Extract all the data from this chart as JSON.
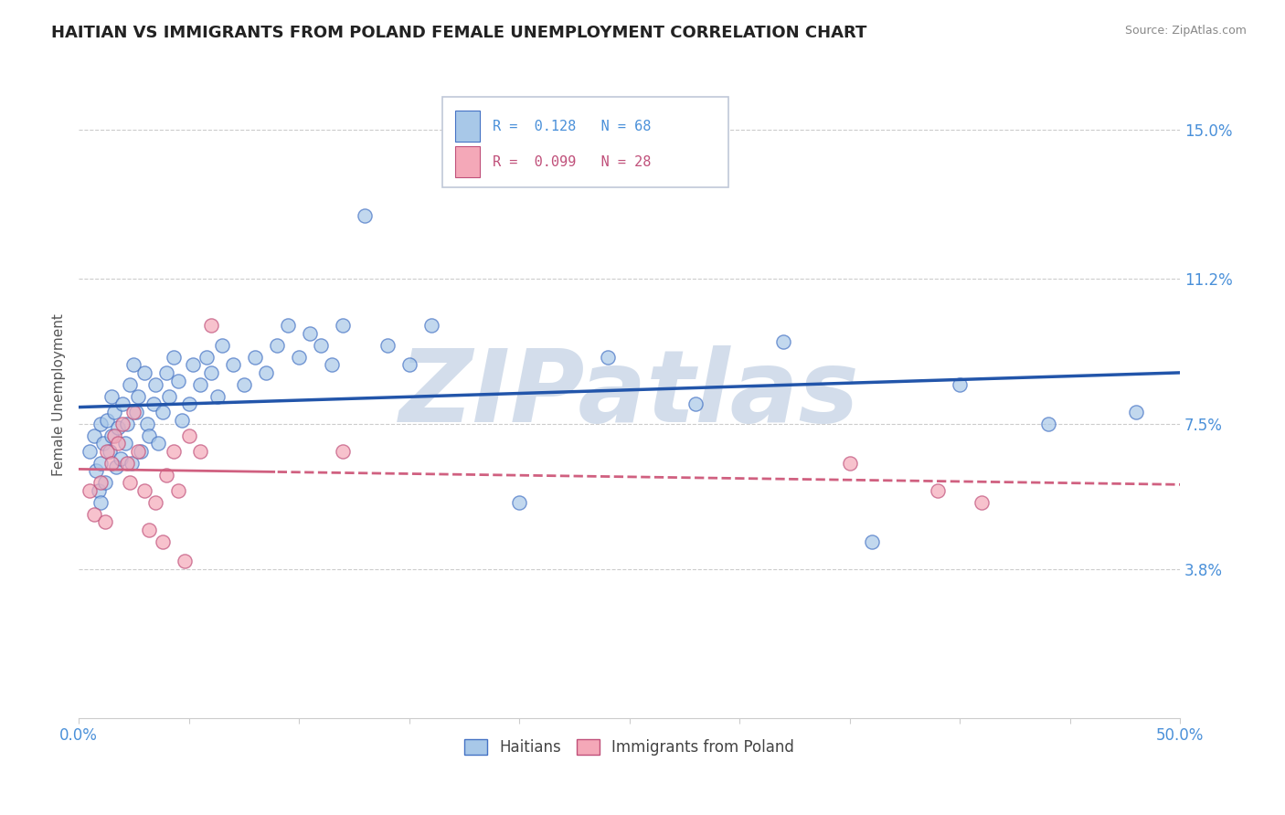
{
  "title": "HAITIAN VS IMMIGRANTS FROM POLAND FEMALE UNEMPLOYMENT CORRELATION CHART",
  "source": "Source: ZipAtlas.com",
  "ylabel": "Female Unemployment",
  "xlim": [
    0.0,
    0.5
  ],
  "ylim": [
    0.0,
    0.165
  ],
  "yticks": [
    0.038,
    0.075,
    0.112,
    0.15
  ],
  "ytick_labels": [
    "3.8%",
    "7.5%",
    "11.2%",
    "15.0%"
  ],
  "xticks": [
    0.0,
    0.05,
    0.1,
    0.15,
    0.2,
    0.25,
    0.3,
    0.35,
    0.4,
    0.45,
    0.5
  ],
  "xtick_labels": [
    "0.0%",
    "",
    "",
    "",
    "",
    "",
    "",
    "",
    "",
    "",
    "50.0%"
  ],
  "legend_line1": "R =  0.128   N = 68",
  "legend_line2": "R =  0.099   N = 28",
  "series1_name": "Haitians",
  "series2_name": "Immigrants from Poland",
  "color1": "#a8c8e8",
  "color2": "#f4a8b8",
  "edge1": "#4472c4",
  "edge2": "#c0507a",
  "trend1_color": "#2255aa",
  "trend2_color": "#d06080",
  "background_color": "#ffffff",
  "grid_color": "#cccccc",
  "watermark": "ZIPatlas",
  "watermark_color": "#ccd8e8",
  "title_color": "#222222",
  "axis_label_color": "#555555",
  "tick_label_color": "#4a90d9",
  "title_fontsize": 13,
  "axis_label_fontsize": 11,
  "haitians_x": [
    0.005,
    0.007,
    0.008,
    0.009,
    0.01,
    0.01,
    0.01,
    0.011,
    0.012,
    0.013,
    0.014,
    0.015,
    0.015,
    0.016,
    0.017,
    0.018,
    0.019,
    0.02,
    0.021,
    0.022,
    0.023,
    0.024,
    0.025,
    0.026,
    0.027,
    0.028,
    0.03,
    0.031,
    0.032,
    0.034,
    0.035,
    0.036,
    0.038,
    0.04,
    0.041,
    0.043,
    0.045,
    0.047,
    0.05,
    0.052,
    0.055,
    0.058,
    0.06,
    0.063,
    0.065,
    0.07,
    0.075,
    0.08,
    0.085,
    0.09,
    0.095,
    0.1,
    0.105,
    0.11,
    0.115,
    0.12,
    0.13,
    0.14,
    0.15,
    0.16,
    0.2,
    0.24,
    0.28,
    0.32,
    0.36,
    0.4,
    0.44,
    0.48
  ],
  "haitians_y": [
    0.068,
    0.072,
    0.063,
    0.058,
    0.075,
    0.065,
    0.055,
    0.07,
    0.06,
    0.076,
    0.068,
    0.082,
    0.072,
    0.078,
    0.064,
    0.074,
    0.066,
    0.08,
    0.07,
    0.075,
    0.085,
    0.065,
    0.09,
    0.078,
    0.082,
    0.068,
    0.088,
    0.075,
    0.072,
    0.08,
    0.085,
    0.07,
    0.078,
    0.088,
    0.082,
    0.092,
    0.086,
    0.076,
    0.08,
    0.09,
    0.085,
    0.092,
    0.088,
    0.082,
    0.095,
    0.09,
    0.085,
    0.092,
    0.088,
    0.095,
    0.1,
    0.092,
    0.098,
    0.095,
    0.09,
    0.1,
    0.128,
    0.095,
    0.09,
    0.1,
    0.055,
    0.092,
    0.08,
    0.096,
    0.045,
    0.085,
    0.075,
    0.078
  ],
  "poland_x": [
    0.005,
    0.007,
    0.01,
    0.012,
    0.013,
    0.015,
    0.016,
    0.018,
    0.02,
    0.022,
    0.023,
    0.025,
    0.027,
    0.03,
    0.032,
    0.035,
    0.038,
    0.04,
    0.043,
    0.045,
    0.048,
    0.05,
    0.055,
    0.06,
    0.12,
    0.35,
    0.39,
    0.41
  ],
  "poland_y": [
    0.058,
    0.052,
    0.06,
    0.05,
    0.068,
    0.065,
    0.072,
    0.07,
    0.075,
    0.065,
    0.06,
    0.078,
    0.068,
    0.058,
    0.048,
    0.055,
    0.045,
    0.062,
    0.068,
    0.058,
    0.04,
    0.072,
    0.068,
    0.1,
    0.068,
    0.065,
    0.058,
    0.055
  ]
}
